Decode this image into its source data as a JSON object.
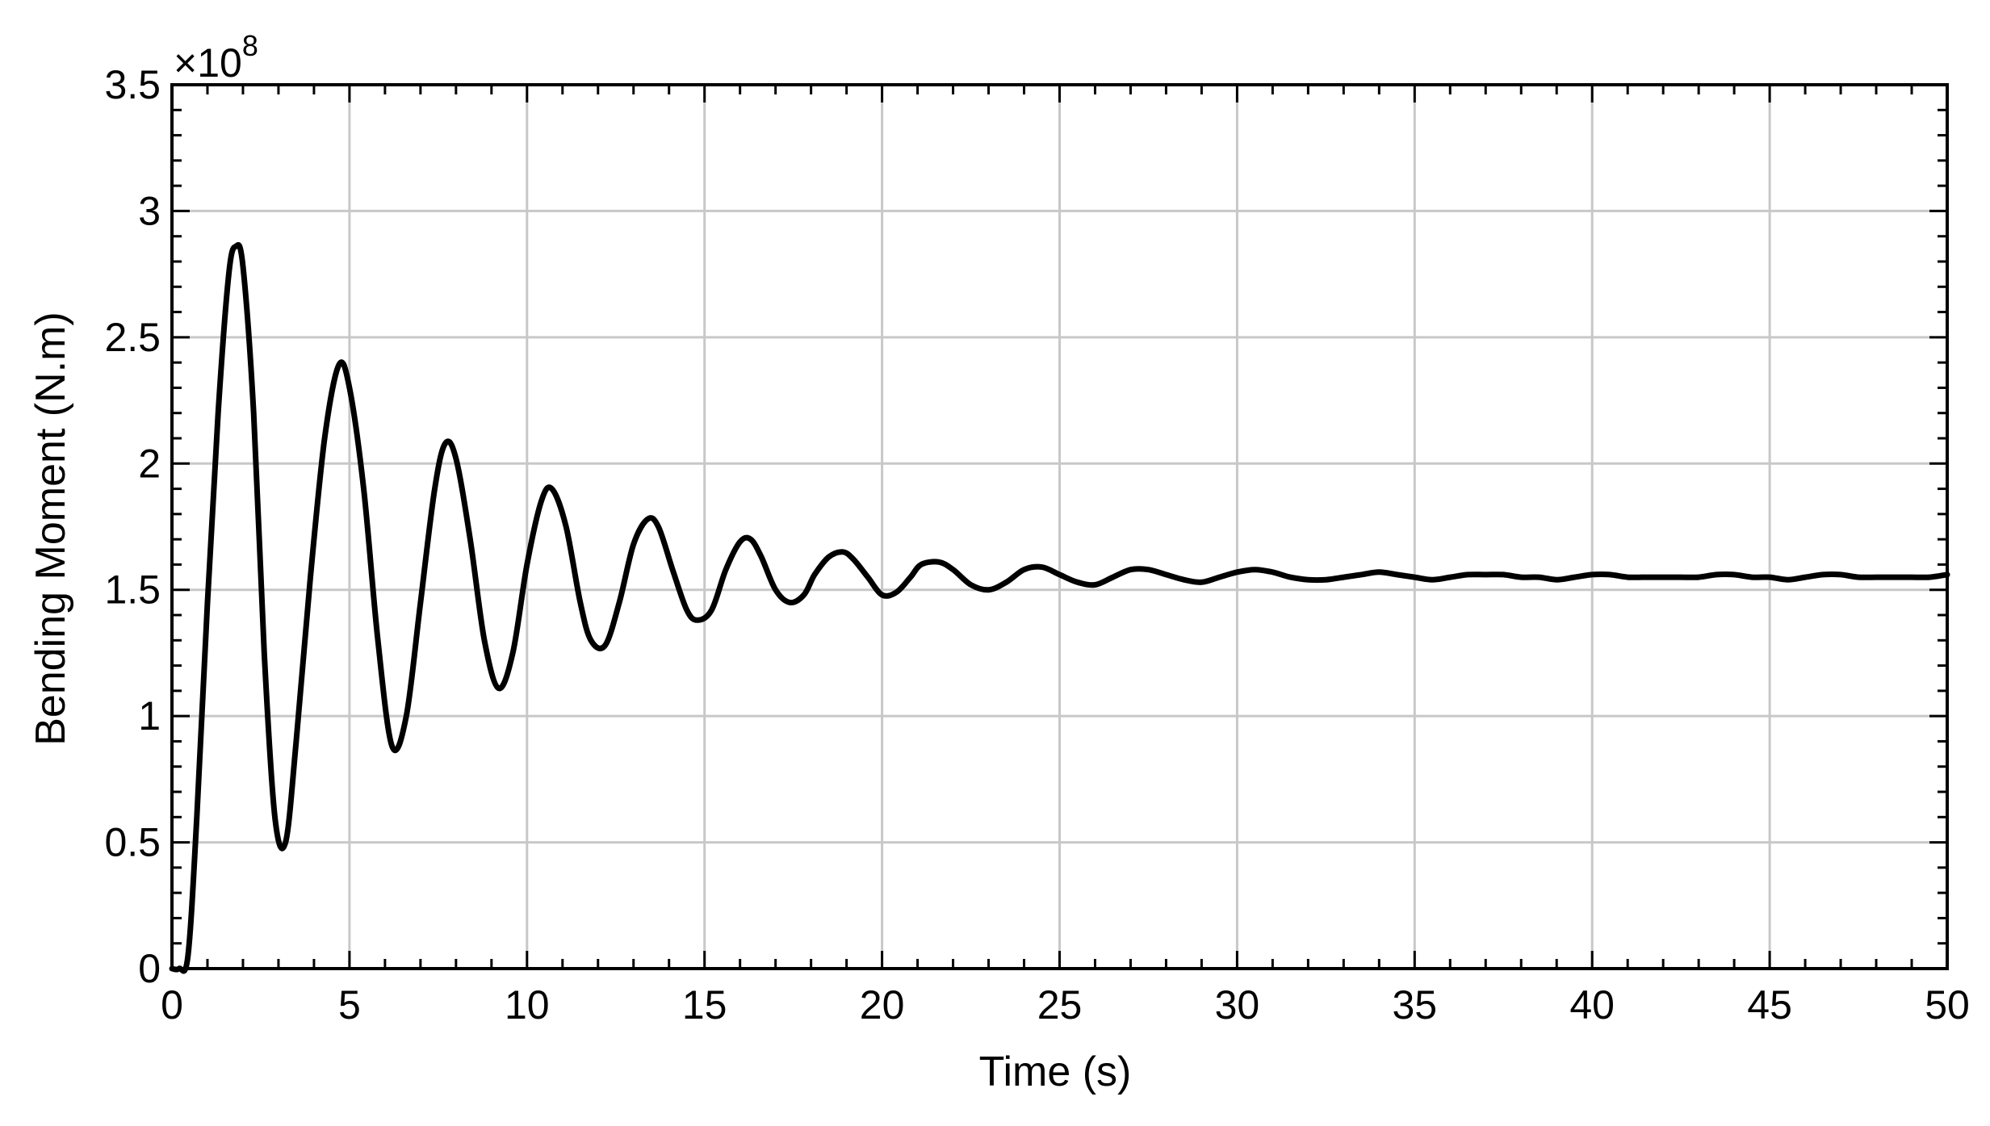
{
  "chart_data": {
    "type": "line",
    "title": "",
    "xlabel": "Time (s)",
    "ylabel": "Bending Moment (N.m)",
    "y_multiplier_base": "×10",
    "y_multiplier_exp": "8",
    "xlim": [
      0,
      50
    ],
    "ylim": [
      0,
      3.5
    ],
    "grid": true,
    "x_ticks": [
      0,
      5,
      10,
      15,
      20,
      25,
      30,
      35,
      40,
      45,
      50
    ],
    "y_ticks": [
      0,
      0.5,
      1,
      1.5,
      2,
      2.5,
      3,
      3.5
    ],
    "x_tick_labels": [
      "0",
      "5",
      "10",
      "15",
      "20",
      "25",
      "30",
      "35",
      "40",
      "45",
      "50"
    ],
    "y_tick_labels": [
      "0",
      "0.5",
      "1",
      "1.5",
      "2",
      "2.5",
      "3",
      "3.5"
    ],
    "line_color": "#000000",
    "series": [
      {
        "x": [
          0,
          0.2,
          0.45,
          0.7,
          1.0,
          1.3,
          1.6,
          1.8,
          2.0,
          2.3,
          2.6,
          2.9,
          3.2,
          3.5,
          3.9,
          4.3,
          4.7,
          5.0,
          5.4,
          5.8,
          6.2,
          6.6,
          7.0,
          7.4,
          7.7,
          8.0,
          8.4,
          8.8,
          9.2,
          9.6,
          10.0,
          10.4,
          10.7,
          11.1,
          11.5,
          11.8,
          12.2,
          12.6,
          13.0,
          13.4,
          13.7,
          14.1,
          14.5,
          14.8,
          15.2,
          15.6,
          16.0,
          16.3,
          16.6,
          17.0,
          17.4,
          17.8,
          18.1,
          18.5,
          18.9,
          19.2,
          19.6,
          20.0,
          20.4,
          20.8,
          21.1,
          21.6,
          22.0,
          22.5,
          23.0,
          23.5,
          24.0,
          24.5,
          25.0,
          25.5,
          26.0,
          26.5,
          27.0,
          27.5,
          28.0,
          28.5,
          29.0,
          29.5,
          30.0,
          30.5,
          31.0,
          31.5,
          32.0,
          32.5,
          33.0,
          33.5,
          34.0,
          34.5,
          35.0,
          35.5,
          36.0,
          36.5,
          37.0,
          37.5,
          38.0,
          38.5,
          39.0,
          39.5,
          40.0,
          40.5,
          41.0,
          41.5,
          42.0,
          42.5,
          43.0,
          43.5,
          44.0,
          44.5,
          45.0,
          45.5,
          46.0,
          46.5,
          47.0,
          47.5,
          48.0,
          48.5,
          49.0,
          49.5,
          50.0
        ],
        "values": [
          0.0,
          0.0,
          0.05,
          0.6,
          1.45,
          2.2,
          2.75,
          2.86,
          2.78,
          2.2,
          1.25,
          0.6,
          0.5,
          0.9,
          1.55,
          2.1,
          2.39,
          2.3,
          1.9,
          1.3,
          0.88,
          1.0,
          1.45,
          1.9,
          2.08,
          2.02,
          1.7,
          1.3,
          1.11,
          1.25,
          1.6,
          1.85,
          1.9,
          1.75,
          1.45,
          1.3,
          1.28,
          1.45,
          1.68,
          1.78,
          1.75,
          1.58,
          1.42,
          1.38,
          1.42,
          1.58,
          1.69,
          1.7,
          1.63,
          1.5,
          1.45,
          1.48,
          1.56,
          1.63,
          1.65,
          1.62,
          1.55,
          1.48,
          1.49,
          1.55,
          1.6,
          1.61,
          1.58,
          1.52,
          1.5,
          1.53,
          1.58,
          1.59,
          1.56,
          1.53,
          1.52,
          1.55,
          1.58,
          1.58,
          1.56,
          1.54,
          1.53,
          1.55,
          1.57,
          1.58,
          1.57,
          1.55,
          1.54,
          1.54,
          1.55,
          1.56,
          1.57,
          1.56,
          1.55,
          1.54,
          1.55,
          1.56,
          1.56,
          1.56,
          1.55,
          1.55,
          1.54,
          1.55,
          1.56,
          1.56,
          1.55,
          1.55,
          1.55,
          1.55,
          1.55,
          1.56,
          1.56,
          1.55,
          1.55,
          1.54,
          1.55,
          1.56,
          1.56,
          1.55,
          1.55,
          1.55,
          1.55,
          1.55,
          1.56
        ]
      }
    ]
  }
}
